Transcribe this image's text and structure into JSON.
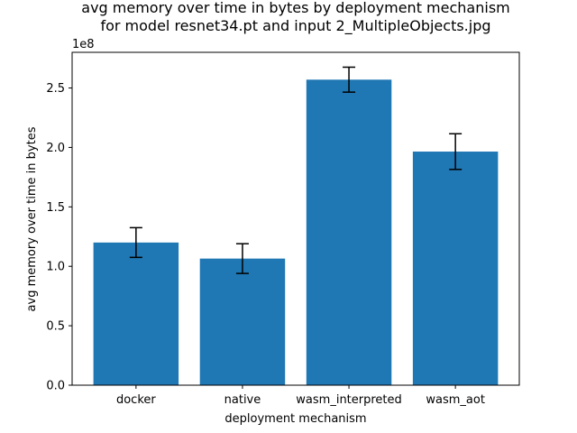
{
  "chart_data": {
    "type": "bar",
    "title": [
      "avg memory over time in bytes by deployment mechanism",
      "for model resnet34.pt and input 2_MultipleObjects.jpg"
    ],
    "xlabel": "deployment mechanism",
    "ylabel": "avg memory over time in bytes",
    "y_multiplier_label": "1e8",
    "categories": [
      "docker",
      "native",
      "wasm_interpreted",
      "wasm_aot"
    ],
    "values": [
      120000000,
      106500000,
      257000000,
      196500000
    ],
    "errors": [
      12500000,
      12500000,
      10500000,
      15000000
    ],
    "ylim": [
      0,
      280000000
    ],
    "yticks": [
      0,
      50000000,
      100000000,
      150000000,
      200000000,
      250000000
    ],
    "ytick_labels": [
      "0.0",
      "0.5",
      "1.0",
      "1.5",
      "2.0",
      "2.5"
    ],
    "grid": false,
    "legend": "none",
    "bar_color": "#1f77b4",
    "error_color": "#000000"
  }
}
